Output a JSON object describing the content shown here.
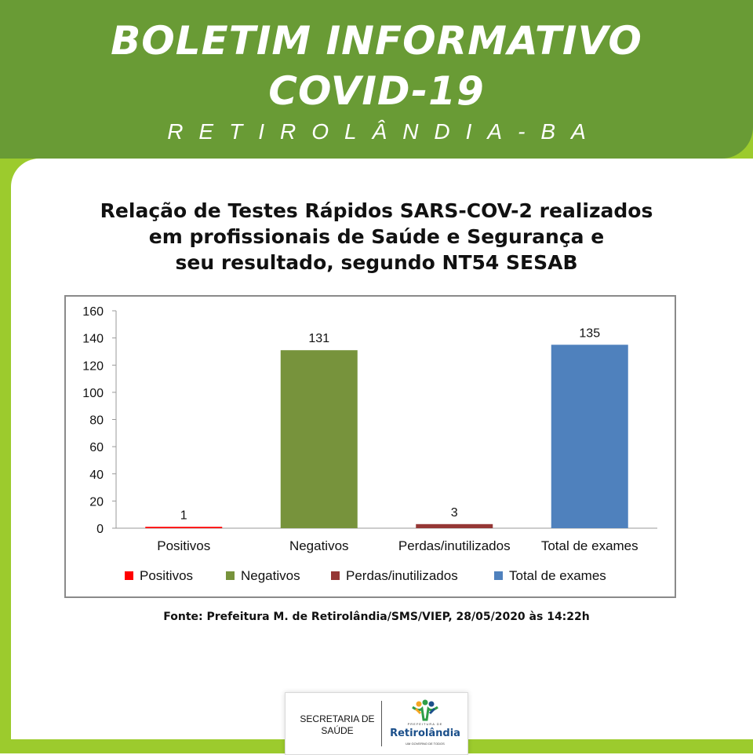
{
  "header": {
    "title_line1": "BOLETIM INFORMATIVO",
    "title_line2": "COVID-19",
    "subtitle": "RETIROLÂNDIA-BA"
  },
  "chart_title": {
    "line1": "Relação de Testes Rápidos SARS-COV-2 realizados",
    "line2": "em profissionais de Saúde e Segurança e",
    "line3": "seu resultado, segundo NT54 SESAB"
  },
  "chart_data": {
    "type": "bar",
    "title": "Relação de Testes Rápidos SARS-COV-2 realizados em profissionais de Saúde e Segurança e seu resultado, segundo NT54 SESAB",
    "categories": [
      "Positivos",
      "Negativos",
      "Perdas/inutilizados",
      "Total de exames"
    ],
    "values": [
      1,
      131,
      3,
      135
    ],
    "colors": [
      "#ff0000",
      "#77933c",
      "#953735",
      "#4f81bd"
    ],
    "ylim": [
      0,
      160
    ],
    "yticks": [
      0,
      20,
      40,
      60,
      80,
      100,
      120,
      140,
      160
    ],
    "legend": [
      "Positivos",
      "Negativos",
      "Perdas/inutilizados",
      "Total de exames"
    ],
    "legend_position": "bottom",
    "grid": false
  },
  "source": "Fonte: Prefeitura M. de Retirolândia/SMS/VIEP, 28/05/2020 às 14:22h",
  "footer": {
    "secretaria_line1": "SECRETARIA DE",
    "secretaria_line2": "SAÚDE",
    "logo_top": "PREFEITURA DE",
    "logo_name": "Retirolândia",
    "logo_bottom": "UM GOVERNO DE TODOS"
  },
  "colors": {
    "header_green": "#699b35",
    "side_lime": "#9ccb2d"
  }
}
